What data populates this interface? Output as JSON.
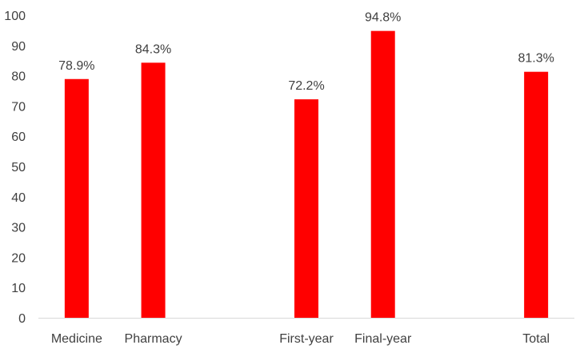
{
  "chart_data": {
    "type": "bar",
    "categories": [
      "Medicine",
      "Pharmacy",
      "",
      "First-year",
      "Final-year",
      "",
      "Total"
    ],
    "values": [
      78.9,
      84.3,
      null,
      72.2,
      94.8,
      null,
      81.3
    ],
    "data_labels": [
      "78.9%",
      "84.3%",
      "",
      "72.2%",
      "94.8%",
      "",
      "81.3%"
    ],
    "ylim": [
      0,
      100
    ],
    "yticks": [
      0,
      10,
      20,
      30,
      40,
      50,
      60,
      70,
      80,
      90,
      100
    ],
    "title": "",
    "xlabel": "",
    "ylabel": "",
    "grid": false,
    "legend": "none",
    "bar_color": "#ff0000",
    "axis_color": "#d9d9d9",
    "text_color": "#404040"
  }
}
